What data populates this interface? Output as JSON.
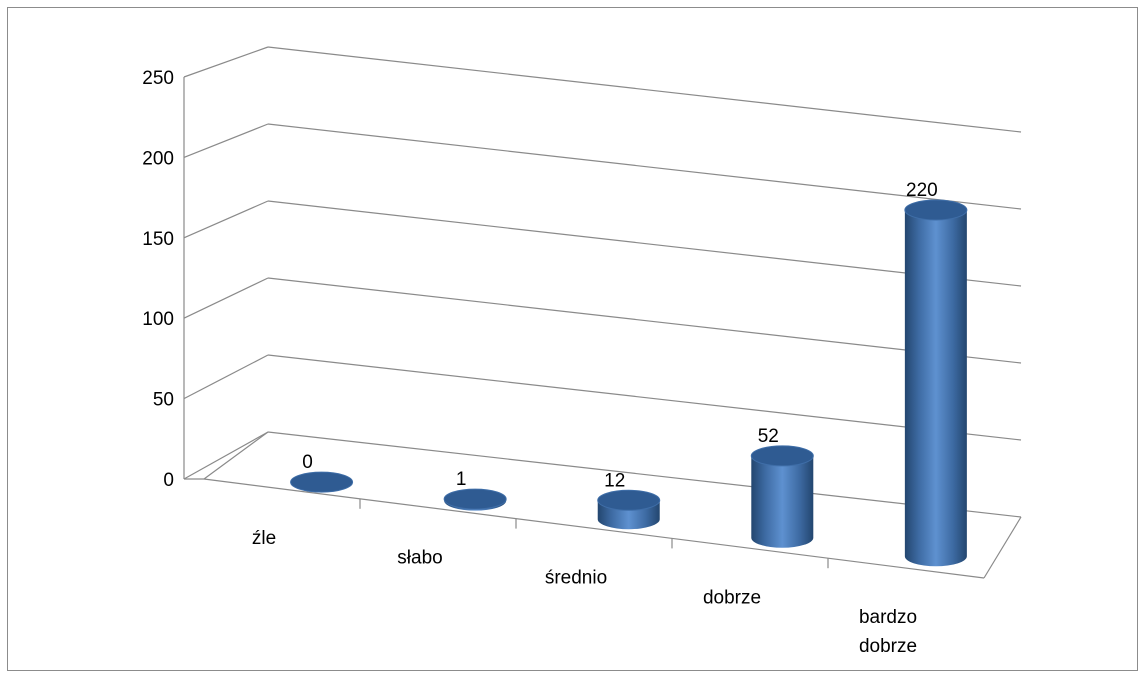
{
  "chart_data": {
    "type": "bar",
    "style": "3d-cylinder",
    "categories": [
      "źle",
      "słabo",
      "średnio",
      "dobrze",
      "bardzo dobrze"
    ],
    "values": [
      0,
      1,
      12,
      52,
      220
    ],
    "ylim": [
      0,
      250
    ],
    "yticks": [
      0,
      50,
      100,
      150,
      200,
      250
    ],
    "grid": true,
    "legend": "none",
    "bar_color": "#4f81bd"
  }
}
